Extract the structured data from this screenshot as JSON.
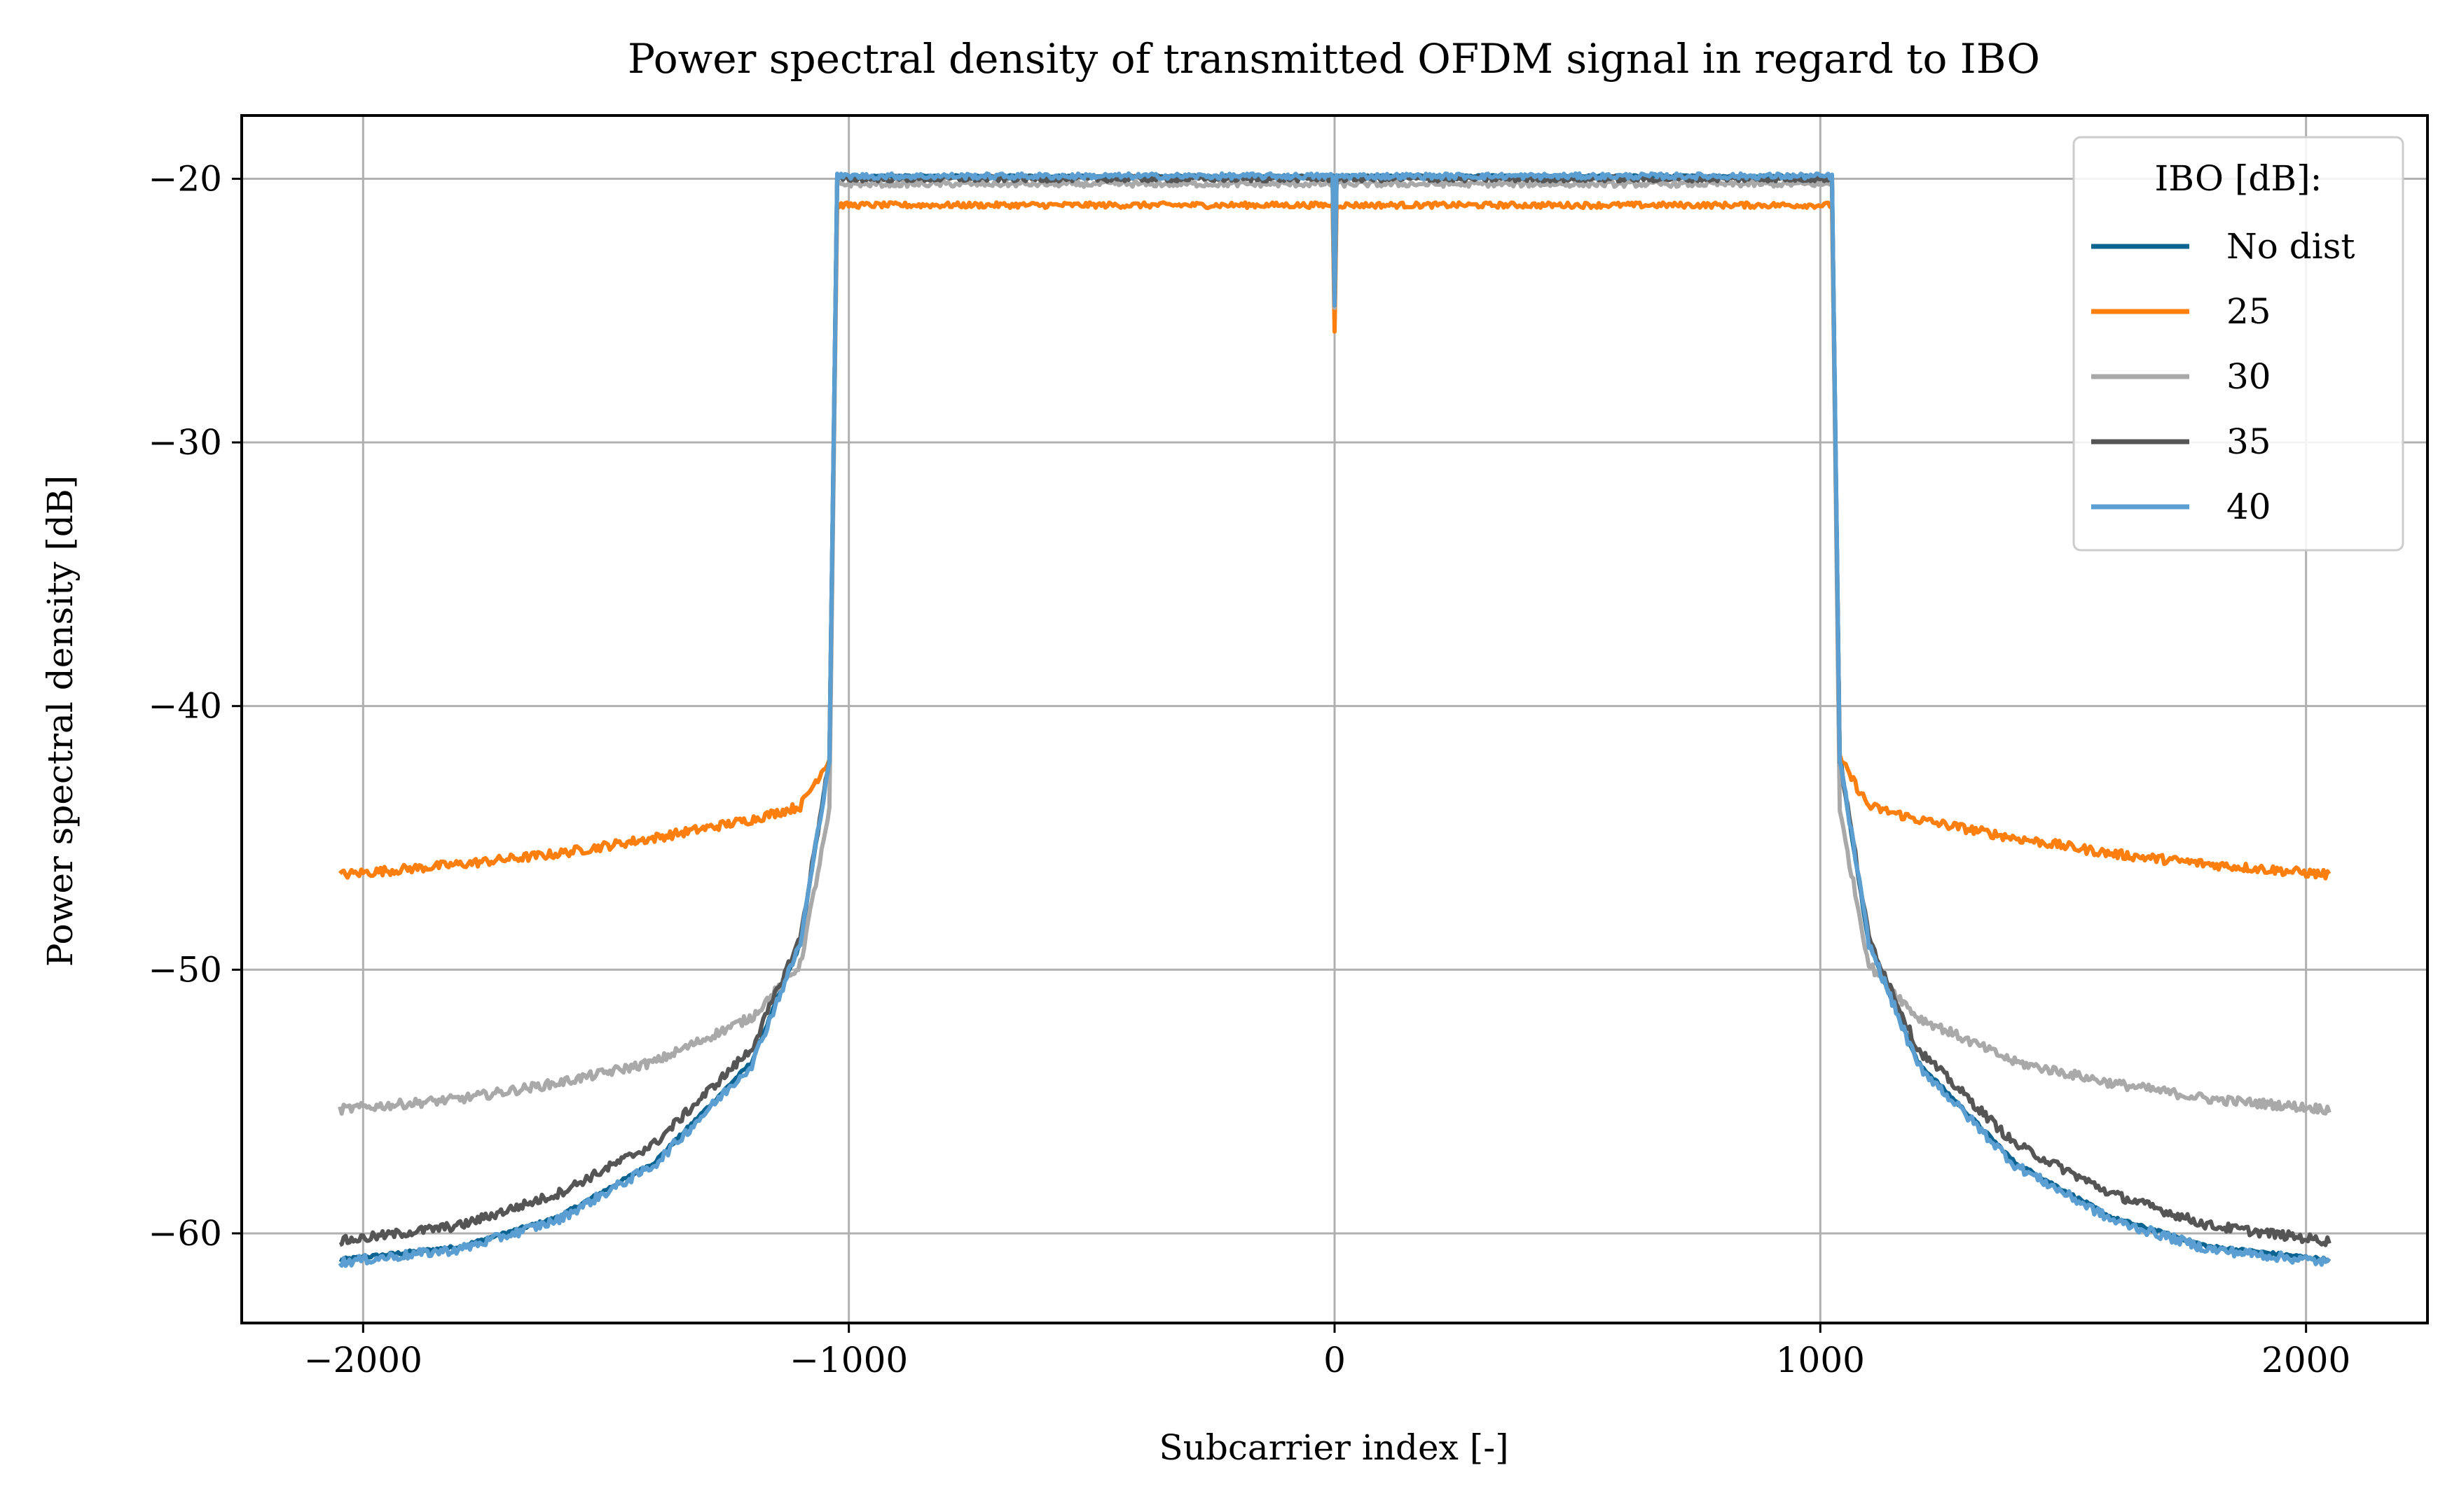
{
  "chart_data": {
    "type": "line",
    "title": "Power spectral density of transmitted OFDM signal in regard to IBO",
    "xlabel": "Subcarrier index [-]",
    "ylabel": "Power spectral density [dB]",
    "xlim": [
      -2250,
      2250
    ],
    "ylim": [
      -63.4,
      -17.6
    ],
    "xticks": [
      -2000,
      -1000,
      0,
      1000,
      2000
    ],
    "xtick_labels": [
      "−2000",
      "−1000",
      "0",
      "1000",
      "2000"
    ],
    "yticks": [
      -60,
      -50,
      -40,
      -30,
      -20
    ],
    "ytick_labels": [
      "−60",
      "−50",
      "−40",
      "−30",
      "−20"
    ],
    "grid": true,
    "legend": {
      "title": "IBO [dB]:",
      "placement": "top-right"
    },
    "x_range": [
      -2048,
      2048
    ],
    "inband_edge": 1024,
    "series": [
      {
        "name": "No dist",
        "color": "#0b6391",
        "inband_level": -19.9,
        "dc_notch": -24.8,
        "x": [
          1024,
          1040,
          1100,
          1200,
          1400,
          1600,
          1800,
          2048
        ],
        "y": [
          -19.9,
          -42.0,
          -49.0,
          -53.5,
          -57.3,
          -59.4,
          -60.5,
          -61.0
        ]
      },
      {
        "name": "25",
        "color": "#ff7f0e",
        "inband_level": -21.0,
        "dc_notch": -25.8,
        "x": [
          1024,
          1040,
          1100,
          1200,
          1400,
          1600,
          1800,
          2048
        ],
        "y": [
          -21.0,
          -42.0,
          -43.8,
          -44.3,
          -45.0,
          -45.6,
          -46.0,
          -46.4
        ]
      },
      {
        "name": "30",
        "color": "#a9a9a9",
        "inband_level": -20.2,
        "dc_notch": -24.9,
        "x": [
          1024,
          1040,
          1100,
          1200,
          1400,
          1600,
          1800,
          2048
        ],
        "y": [
          -20.2,
          -44.0,
          -49.8,
          -51.8,
          -53.5,
          -54.3,
          -54.9,
          -55.3
        ]
      },
      {
        "name": "35",
        "color": "#555555",
        "inband_level": -20.0,
        "dc_notch": -24.8,
        "x": [
          1024,
          1040,
          1100,
          1200,
          1400,
          1600,
          1800,
          2048
        ],
        "y": [
          -20.0,
          -42.0,
          -48.8,
          -53.0,
          -56.6,
          -58.5,
          -59.7,
          -60.3
        ]
      },
      {
        "name": "40",
        "color": "#5b9ed1",
        "inband_level": -19.9,
        "dc_notch": -24.8,
        "x": [
          1024,
          1040,
          1100,
          1200,
          1400,
          1600,
          1800,
          2048
        ],
        "y": [
          -19.9,
          -42.0,
          -49.0,
          -53.6,
          -57.4,
          -59.5,
          -60.6,
          -61.1
        ]
      }
    ]
  }
}
